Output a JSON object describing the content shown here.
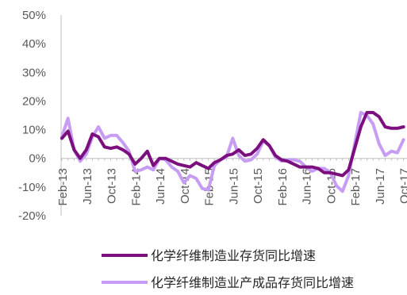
{
  "chart_data": {
    "type": "line",
    "title": "",
    "xlabel": "",
    "ylabel": "",
    "ylim": [
      -20,
      50
    ],
    "yticks": [
      -20,
      -10,
      0,
      10,
      20,
      30,
      40,
      50
    ],
    "ytick_labels": [
      "-20%",
      "-10%",
      "0%",
      "10%",
      "20%",
      "30%",
      "40%",
      "50%"
    ],
    "xtick_labels": [
      "Feb-13",
      "Jun-13",
      "Oct-13",
      "Feb-14",
      "Jun-14",
      "Oct-14",
      "Feb-15",
      "Jun-15",
      "Oct-15",
      "Feb-16",
      "Jun-16",
      "Oct-16",
      "Feb-17",
      "Jun-17",
      "Oct-17"
    ],
    "xtick_index": [
      0,
      4,
      8,
      12,
      16,
      20,
      24,
      28,
      32,
      36,
      40,
      44,
      48,
      52,
      56
    ],
    "grid": false,
    "legend_position": "bottom",
    "series": [
      {
        "name": "化学纤维制造业存货同比增速",
        "color": "#7b0f7e",
        "values": [
          7,
          9.5,
          3,
          0,
          3,
          8.5,
          7.5,
          4,
          3.5,
          4,
          3,
          1.5,
          -2,
          0,
          2.5,
          -2.5,
          0,
          0,
          -1,
          -2,
          -2.5,
          -3,
          -1.5,
          -2.5,
          -3.5,
          -1.5,
          -0.5,
          1,
          1.5,
          3,
          1,
          1.5,
          3.5,
          6.5,
          4.5,
          1,
          -0.5,
          -1,
          -2,
          -3,
          -3,
          -3,
          -3.5,
          -5,
          -5,
          -5.5,
          -6,
          -4,
          3.5,
          11,
          16,
          16,
          14.5,
          11,
          10.5,
          10.5,
          11
        ]
      },
      {
        "name": "化学纤维制造业产成品存货同比增速",
        "color": "#c79cf5",
        "values": [
          7.5,
          14,
          3,
          -1,
          1.5,
          7.5,
          11,
          7,
          8,
          8,
          5.5,
          2.5,
          -4.5,
          -4,
          -3,
          -4,
          0,
          -0.5,
          -3,
          -4.5,
          -8.5,
          -6,
          -7,
          -10.5,
          -11,
          -2.5,
          -0.5,
          0.5,
          7,
          1,
          -1,
          -0.5,
          1.5,
          6,
          4.5,
          0.5,
          -1,
          -0.5,
          -0.5,
          -1,
          -3,
          -4.5,
          -3.5,
          -3.5,
          -5,
          -9.5,
          -11.5,
          -6,
          5,
          16,
          15,
          12,
          5,
          1,
          2.5,
          2,
          6.5
        ]
      }
    ]
  }
}
